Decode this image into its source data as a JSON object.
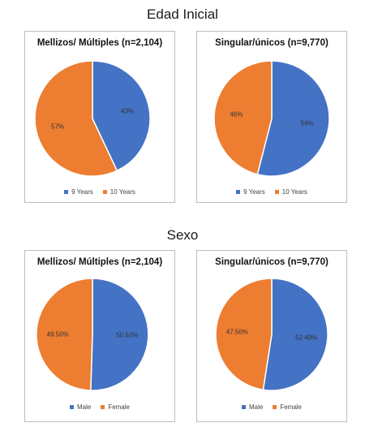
{
  "sections": [
    {
      "title": "Edad Inicial"
    },
    {
      "title": "Sexo"
    }
  ],
  "colors": {
    "blue": "#4472C4",
    "orange": "#ED7D31"
  },
  "chart_data": [
    {
      "type": "pie",
      "title": "Mellizos/ Múltiples (n=2,104)",
      "categories": [
        "9 Years",
        "10 Years"
      ],
      "values": [
        43,
        57
      ],
      "labels": [
        "43%",
        "57%"
      ],
      "legend": "bottom"
    },
    {
      "type": "pie",
      "title": "Singular/únicos (n=9,770)",
      "categories": [
        "9 Years",
        "10 Years"
      ],
      "values": [
        54,
        46
      ],
      "labels": [
        "54%",
        "46%"
      ],
      "legend": "bottom"
    },
    {
      "type": "pie",
      "title": "Mellizos/ Múltiples (n=2,104)",
      "categories": [
        "Male",
        "Female"
      ],
      "values": [
        50.5,
        49.5
      ],
      "labels": [
        "50.50%",
        "49.50%"
      ],
      "legend": "bottom"
    },
    {
      "type": "pie",
      "title": "Singular/únicos (n=9,770)",
      "categories": [
        "Male",
        "Female"
      ],
      "values": [
        52.4,
        47.5
      ],
      "labels": [
        "52.40%",
        "47.50%"
      ],
      "legend": "bottom"
    }
  ]
}
